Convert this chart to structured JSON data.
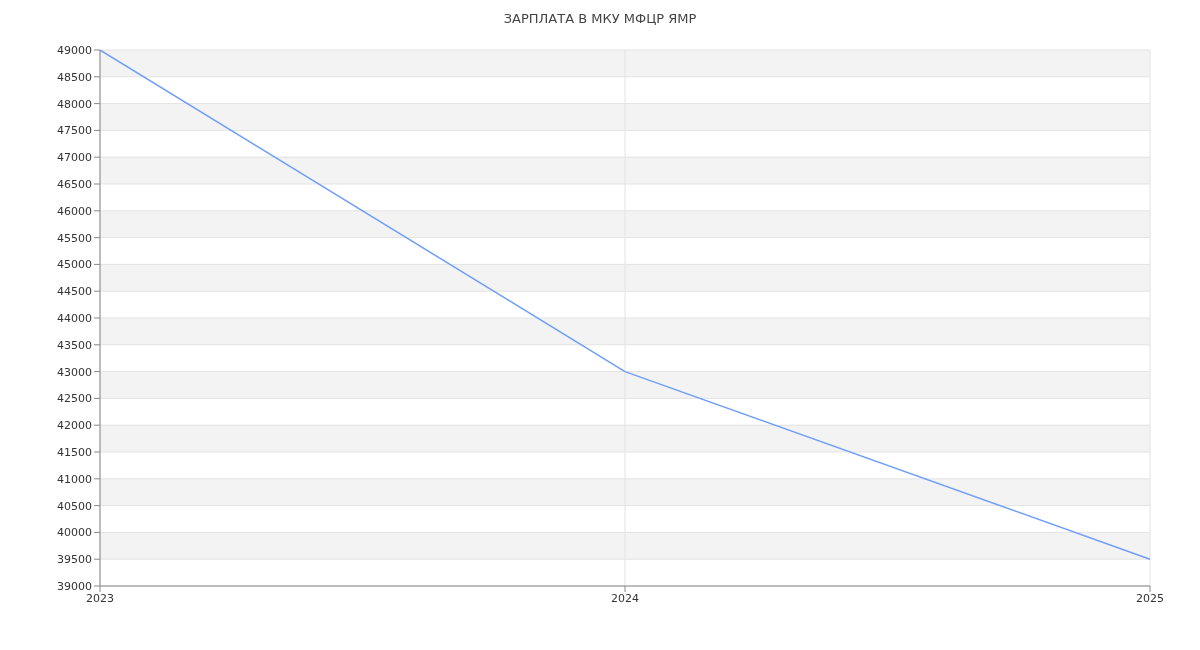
{
  "chart_data": {
    "type": "line",
    "title": "ЗАРПЛАТА В МКУ МФЦР ЯМР",
    "categories": [
      "2023",
      "2024",
      "2025"
    ],
    "series": [
      {
        "color": "#6f9ef8",
        "values": [
          49000,
          43000,
          39500
        ]
      }
    ],
    "ylim": [
      39000,
      49000
    ],
    "yticks": [
      39000,
      39500,
      40000,
      40500,
      41000,
      41500,
      42000,
      42500,
      43000,
      43500,
      44000,
      44500,
      45000,
      45500,
      46000,
      46500,
      47000,
      47500,
      48000,
      48500,
      49000
    ],
    "grid": true,
    "marker": "none",
    "legend": false
  }
}
